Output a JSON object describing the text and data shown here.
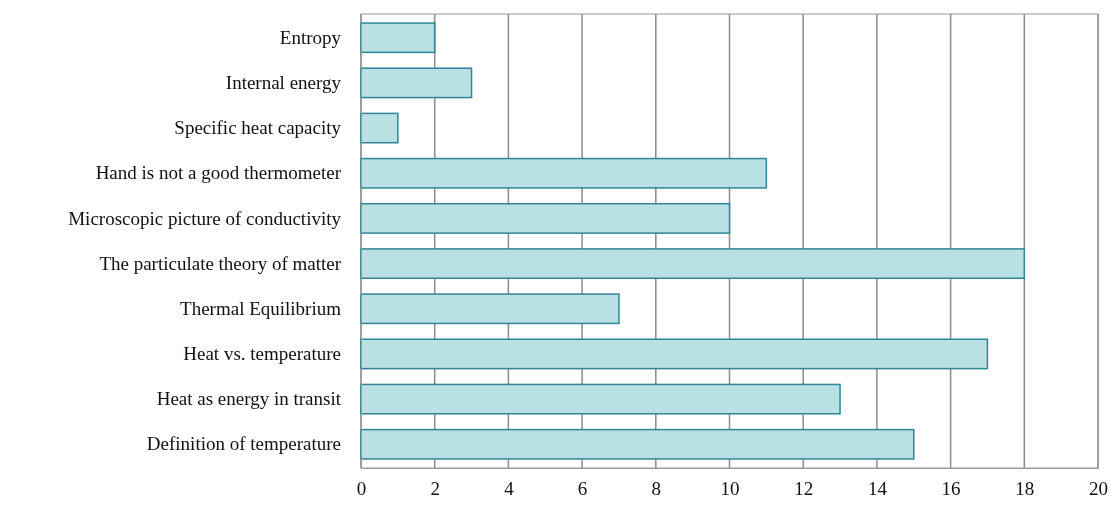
{
  "chart_data": {
    "type": "bar",
    "orientation": "horizontal",
    "categories": [
      "Entropy",
      "Internal energy",
      "Specific heat capacity",
      "Hand is not a good thermometer",
      "Microscopic picture of conductivity",
      "The particulate theory of matter",
      "Thermal Equilibrium",
      "Heat vs. temperature",
      "Heat as energy in transit",
      "Definition of temperature"
    ],
    "values": [
      2,
      3,
      1,
      11,
      10,
      18,
      7,
      17,
      13,
      15
    ],
    "color": "#b9e0e3",
    "xlim": [
      0,
      20
    ],
    "xticks": [
      0,
      2,
      4,
      6,
      8,
      10,
      12,
      14,
      16,
      18,
      20
    ],
    "grid": "x"
  }
}
